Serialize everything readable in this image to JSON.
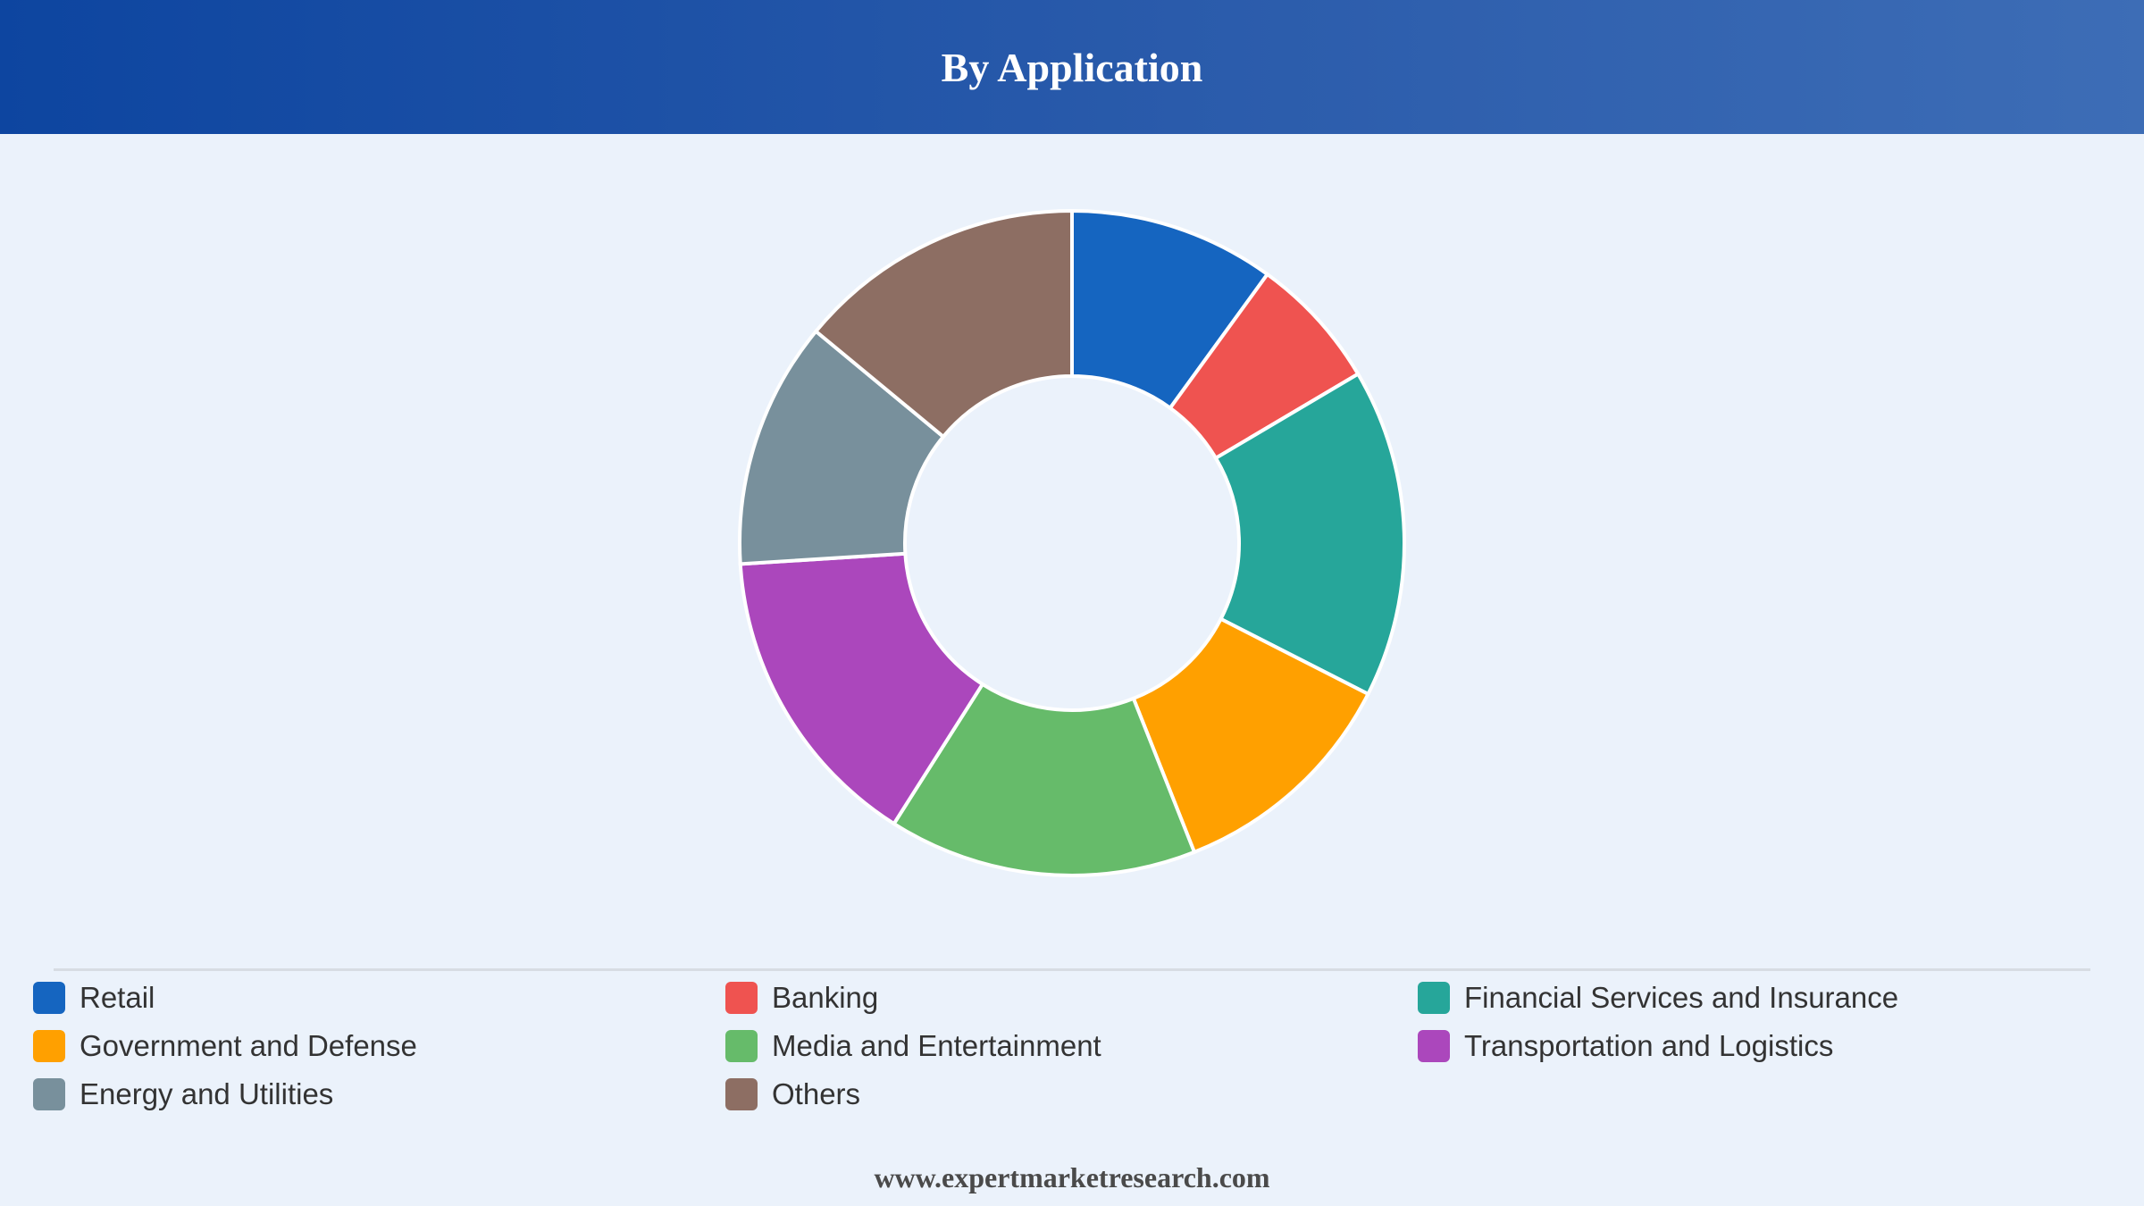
{
  "header": {
    "title": "By Application"
  },
  "chart_data": {
    "type": "pie",
    "variant": "donut",
    "title": "By Application",
    "categories": [
      "Retail",
      "Banking",
      "Financial Services and Insurance",
      "Government and Defense",
      "Media and Entertainment",
      "Transportation and Logistics",
      "Energy and Utilities",
      "Others"
    ],
    "values": [
      10,
      6.5,
      16,
      11.5,
      15,
      15,
      12,
      14
    ],
    "colors": [
      "#1565c0",
      "#ef5350",
      "#26a69a",
      "#ffa000",
      "#66bb6a",
      "#ab47bc",
      "#78909c",
      "#8d6e63"
    ],
    "legend_position": "bottom"
  },
  "footer": {
    "url": "www.expertmarketresearch.com"
  }
}
